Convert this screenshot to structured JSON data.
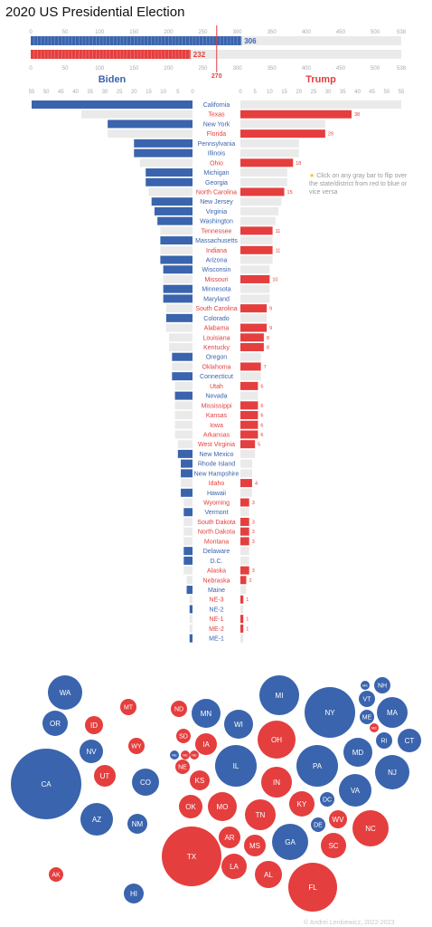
{
  "title": "2020 US Presidential Election",
  "colors": {
    "dem": "#3a64ad",
    "rep": "#e53e3e",
    "gray": "#eaeaea",
    "axis": "#aaaaaa",
    "line270": "#e53e3e"
  },
  "tip": {
    "icon": "star-icon",
    "text": "Click on any gray bar to flip over the state/district from red to blue or vice versa"
  },
  "copyright": "© Andrei Lenkiewicz, 2022-2023",
  "chart_data": [
    {
      "type": "bar",
      "name_role": "electoral-vote-totals",
      "xlim": [
        0,
        538
      ],
      "ticks": [
        0,
        50,
        100,
        150,
        200,
        250,
        300,
        350,
        400,
        450,
        500,
        538
      ],
      "threshold": 270,
      "series": [
        {
          "party": "dem",
          "value": 306
        },
        {
          "party": "rep",
          "value": 232
        }
      ]
    },
    {
      "type": "bar",
      "name_role": "electoral-votes-by-state",
      "left_label": "Biden",
      "right_label": "Trump",
      "xlim": [
        0,
        55
      ],
      "ticks": [
        0,
        5,
        10,
        15,
        20,
        25,
        30,
        35,
        40,
        45,
        50,
        55
      ],
      "states": [
        {
          "name": "California",
          "ev": 55,
          "winner": "dem"
        },
        {
          "name": "Texas",
          "ev": 38,
          "winner": "rep"
        },
        {
          "name": "New York",
          "ev": 29,
          "winner": "dem"
        },
        {
          "name": "Florida",
          "ev": 29,
          "winner": "rep"
        },
        {
          "name": "Pennsylvania",
          "ev": 20,
          "winner": "dem"
        },
        {
          "name": "Illinois",
          "ev": 20,
          "winner": "dem"
        },
        {
          "name": "Ohio",
          "ev": 18,
          "winner": "rep"
        },
        {
          "name": "Michigan",
          "ev": 16,
          "winner": "dem"
        },
        {
          "name": "Georgia",
          "ev": 16,
          "winner": "dem"
        },
        {
          "name": "North Carolina",
          "ev": 15,
          "winner": "rep"
        },
        {
          "name": "New Jersey",
          "ev": 14,
          "winner": "dem"
        },
        {
          "name": "Virginia",
          "ev": 13,
          "winner": "dem"
        },
        {
          "name": "Washington",
          "ev": 12,
          "winner": "dem"
        },
        {
          "name": "Tennessee",
          "ev": 11,
          "winner": "rep"
        },
        {
          "name": "Massachusetts",
          "ev": 11,
          "winner": "dem"
        },
        {
          "name": "Indiana",
          "ev": 11,
          "winner": "rep"
        },
        {
          "name": "Arizona",
          "ev": 11,
          "winner": "dem"
        },
        {
          "name": "Wisconsin",
          "ev": 10,
          "winner": "dem"
        },
        {
          "name": "Missouri",
          "ev": 10,
          "winner": "rep"
        },
        {
          "name": "Minnesota",
          "ev": 10,
          "winner": "dem"
        },
        {
          "name": "Maryland",
          "ev": 10,
          "winner": "dem"
        },
        {
          "name": "South Carolina",
          "ev": 9,
          "winner": "rep"
        },
        {
          "name": "Colorado",
          "ev": 9,
          "winner": "dem"
        },
        {
          "name": "Alabama",
          "ev": 9,
          "winner": "rep"
        },
        {
          "name": "Louisiana",
          "ev": 8,
          "winner": "rep"
        },
        {
          "name": "Kentucky",
          "ev": 8,
          "winner": "rep"
        },
        {
          "name": "Oregon",
          "ev": 7,
          "winner": "dem"
        },
        {
          "name": "Oklahoma",
          "ev": 7,
          "winner": "rep"
        },
        {
          "name": "Connecticut",
          "ev": 7,
          "winner": "dem"
        },
        {
          "name": "Utah",
          "ev": 6,
          "winner": "rep"
        },
        {
          "name": "Nevada",
          "ev": 6,
          "winner": "dem"
        },
        {
          "name": "Mississippi",
          "ev": 6,
          "winner": "rep"
        },
        {
          "name": "Kansas",
          "ev": 6,
          "winner": "rep"
        },
        {
          "name": "Iowa",
          "ev": 6,
          "winner": "rep"
        },
        {
          "name": "Arkansas",
          "ev": 6,
          "winner": "rep"
        },
        {
          "name": "West Virginia",
          "ev": 5,
          "winner": "rep"
        },
        {
          "name": "New Mexico",
          "ev": 5,
          "winner": "dem"
        },
        {
          "name": "Rhode Island",
          "ev": 4,
          "winner": "dem"
        },
        {
          "name": "New Hampshire",
          "ev": 4,
          "winner": "dem"
        },
        {
          "name": "Idaho",
          "ev": 4,
          "winner": "rep"
        },
        {
          "name": "Hawaii",
          "ev": 4,
          "winner": "dem"
        },
        {
          "name": "Wyoming",
          "ev": 3,
          "winner": "rep"
        },
        {
          "name": "Vermont",
          "ev": 3,
          "winner": "dem"
        },
        {
          "name": "South Dakota",
          "ev": 3,
          "winner": "rep"
        },
        {
          "name": "North Dakota",
          "ev": 3,
          "winner": "rep"
        },
        {
          "name": "Montana",
          "ev": 3,
          "winner": "rep"
        },
        {
          "name": "Delaware",
          "ev": 3,
          "winner": "dem"
        },
        {
          "name": "D.C.",
          "ev": 3,
          "winner": "dem"
        },
        {
          "name": "Alaska",
          "ev": 3,
          "winner": "rep"
        },
        {
          "name": "Nebraska",
          "ev": 2,
          "winner": "rep"
        },
        {
          "name": "Maine",
          "ev": 2,
          "winner": "dem"
        },
        {
          "name": "NE-3",
          "ev": 1,
          "winner": "rep"
        },
        {
          "name": "NE-2",
          "ev": 1,
          "winner": "dem"
        },
        {
          "name": "NE-1",
          "ev": 1,
          "winner": "rep"
        },
        {
          "name": "ME-2",
          "ev": 1,
          "winner": "rep"
        },
        {
          "name": "ME-1",
          "ev": 1,
          "winner": "dem"
        }
      ]
    },
    {
      "type": "scatter",
      "name_role": "bubble-map",
      "bubbles": [
        {
          "label": "WA",
          "party": "dem"
        },
        {
          "label": "OR",
          "party": "dem"
        },
        {
          "label": "CA",
          "party": "dem"
        },
        {
          "label": "NV",
          "party": "dem"
        },
        {
          "label": "ID",
          "party": "rep"
        },
        {
          "label": "MT",
          "party": "rep"
        },
        {
          "label": "WY",
          "party": "rep"
        },
        {
          "label": "UT",
          "party": "rep"
        },
        {
          "label": "AZ",
          "party": "dem"
        },
        {
          "label": "CO",
          "party": "dem"
        },
        {
          "label": "NM",
          "party": "dem"
        },
        {
          "label": "AK",
          "party": "rep"
        },
        {
          "label": "HI",
          "party": "dem"
        },
        {
          "label": "ND",
          "party": "rep"
        },
        {
          "label": "SD",
          "party": "rep"
        },
        {
          "label": "NE",
          "party": "rep"
        },
        {
          "label": "NE",
          "party": "dem"
        },
        {
          "label": "NE",
          "party": "rep"
        },
        {
          "label": "NE",
          "party": "rep"
        },
        {
          "label": "KS",
          "party": "rep"
        },
        {
          "label": "OK",
          "party": "rep"
        },
        {
          "label": "TX",
          "party": "rep"
        },
        {
          "label": "MN",
          "party": "dem"
        },
        {
          "label": "IA",
          "party": "rep"
        },
        {
          "label": "MO",
          "party": "rep"
        },
        {
          "label": "AR",
          "party": "rep"
        },
        {
          "label": "LA",
          "party": "rep"
        },
        {
          "label": "WI",
          "party": "dem"
        },
        {
          "label": "IL",
          "party": "dem"
        },
        {
          "label": "MI",
          "party": "dem"
        },
        {
          "label": "IN",
          "party": "rep"
        },
        {
          "label": "OH",
          "party": "rep"
        },
        {
          "label": "KY",
          "party": "rep"
        },
        {
          "label": "TN",
          "party": "rep"
        },
        {
          "label": "MS",
          "party": "rep"
        },
        {
          "label": "AL",
          "party": "rep"
        },
        {
          "label": "GA",
          "party": "dem"
        },
        {
          "label": "FL",
          "party": "rep"
        },
        {
          "label": "SC",
          "party": "rep"
        },
        {
          "label": "NC",
          "party": "rep"
        },
        {
          "label": "VA",
          "party": "dem"
        },
        {
          "label": "WV",
          "party": "rep"
        },
        {
          "label": "DC",
          "party": "dem"
        },
        {
          "label": "MD",
          "party": "dem"
        },
        {
          "label": "DE",
          "party": "dem"
        },
        {
          "label": "PA",
          "party": "dem"
        },
        {
          "label": "NJ",
          "party": "dem"
        },
        {
          "label": "NY",
          "party": "dem"
        },
        {
          "label": "CT",
          "party": "dem"
        },
        {
          "label": "RI",
          "party": "dem"
        },
        {
          "label": "MA",
          "party": "dem"
        },
        {
          "label": "VT",
          "party": "dem"
        },
        {
          "label": "NH",
          "party": "dem"
        },
        {
          "label": "ME",
          "party": "dem"
        },
        {
          "label": "ME",
          "party": "rep"
        },
        {
          "label": "ME",
          "party": "dem"
        }
      ]
    }
  ]
}
